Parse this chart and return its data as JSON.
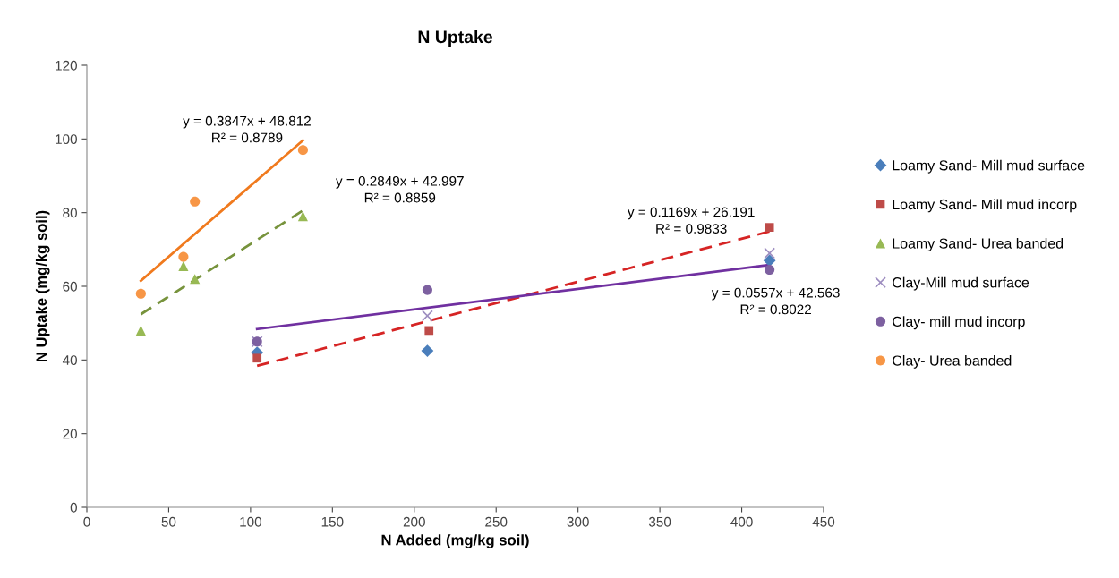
{
  "chart_data": {
    "type": "scatter",
    "title": "N Uptake",
    "xlabel": "N Added (mg/kg soil)",
    "ylabel": "N Uptake (mg/kg soil)",
    "xlim": [
      0,
      450
    ],
    "xticks": [
      0,
      50,
      100,
      150,
      200,
      250,
      300,
      350,
      400,
      450
    ],
    "ylim": [
      0,
      120
    ],
    "yticks": [
      0,
      20,
      40,
      60,
      80,
      100,
      120
    ],
    "grid": false,
    "legend": "right",
    "series": [
      {
        "name": "Loamy Sand- Mill mud surface",
        "marker": "diamond",
        "color": "#4a7ebb",
        "x": [
          104,
          208,
          417
        ],
        "values": [
          42,
          42.5,
          67
        ]
      },
      {
        "name": "Loamy Sand- Mill mud incorp",
        "marker": "square",
        "color": "#be4b48",
        "x": [
          104,
          209,
          417
        ],
        "values": [
          40.5,
          48,
          76
        ]
      },
      {
        "name": "Loamy Sand- Urea banded",
        "marker": "triangle",
        "color": "#98b954",
        "x": [
          33,
          59,
          66,
          132
        ],
        "values": [
          48,
          65.5,
          62,
          79
        ]
      },
      {
        "name": "Clay-Mill mud surface",
        "marker": "cross",
        "color": "#9d8dc0",
        "x": [
          104,
          208,
          417
        ],
        "values": [
          45,
          52,
          69
        ]
      },
      {
        "name": "Clay- mill mud incorp",
        "marker": "circle",
        "color": "#7d60a0",
        "x": [
          104,
          208,
          417
        ],
        "values": [
          45,
          59,
          64.5
        ]
      },
      {
        "name": "Clay- Urea banded",
        "marker": "circle",
        "color": "#f79646",
        "x": [
          33,
          59,
          66,
          132
        ],
        "values": [
          58,
          68,
          83,
          97
        ]
      },
      {
        "type": "line",
        "line_style": "solid",
        "color": "#f07a1e",
        "x": [
          33,
          132
        ],
        "values": [
          61.5,
          99.6
        ]
      },
      {
        "type": "line",
        "line_style": "dashed",
        "color": "#77933c",
        "x": [
          33,
          132
        ],
        "values": [
          52.4,
          80.6
        ]
      },
      {
        "type": "line",
        "line_style": "dashed",
        "color": "#d62424",
        "x": [
          104,
          417
        ],
        "values": [
          38.4,
          74.9
        ]
      },
      {
        "type": "line",
        "line_style": "solid",
        "color": "#7030a0",
        "x": [
          104,
          417
        ],
        "values": [
          48.4,
          65.8
        ]
      }
    ],
    "annotations": [
      "y = 0.3847x + 48.812\nR² = 0.8789",
      "y = 0.2849x + 42.997\nR² = 0.8859",
      "y = 0.1169x + 26.191\nR² = 0.9833",
      "y = 0.0557x + 42.563\nR² = 0.8022"
    ]
  }
}
